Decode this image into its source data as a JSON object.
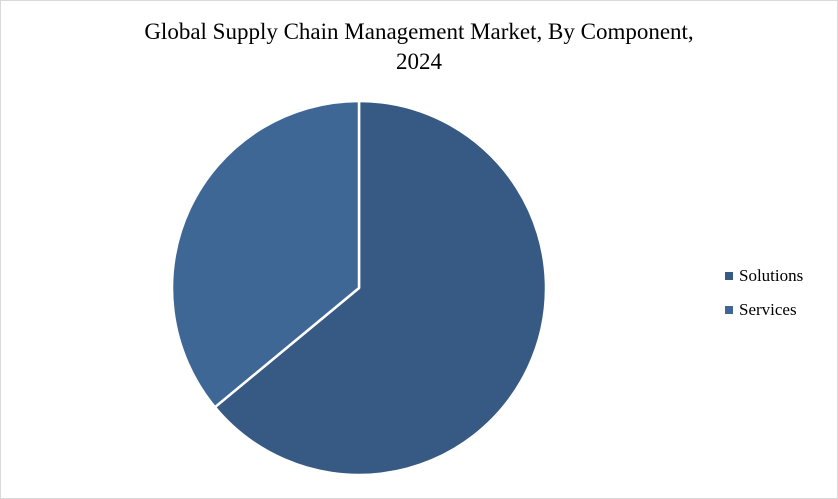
{
  "chart_data": {
    "type": "pie",
    "title": "Global Supply Chain Management Market, By Component, 2024",
    "title_lines": [
      "Global Supply Chain Management Market, By Component,",
      "2024"
    ],
    "categories": [
      "Solutions",
      "Services"
    ],
    "values": [
      64,
      36
    ],
    "unit": "% share (estimated from slice angles)",
    "colors": [
      "#375A85",
      "#3F6796"
    ],
    "start_angle_deg": 0,
    "direction": "clockwise",
    "legend_position": "right",
    "data_labels": false
  },
  "legend": {
    "items": [
      {
        "label": "Solutions",
        "color": "#375A85"
      },
      {
        "label": "Services",
        "color": "#3F6796"
      }
    ]
  }
}
